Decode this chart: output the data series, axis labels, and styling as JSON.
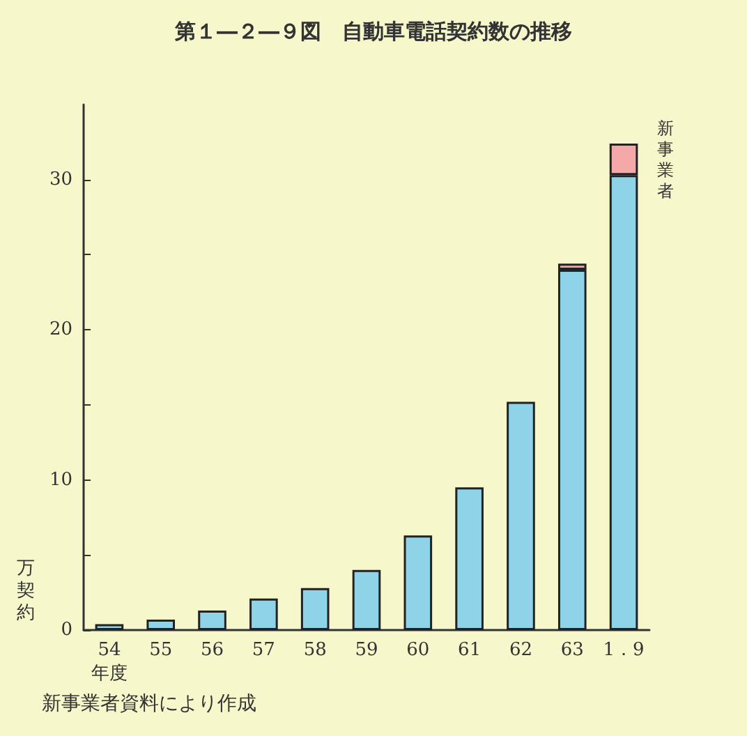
{
  "chart_data": {
    "type": "bar",
    "title": "第１―２―９図　自動車電話契約数の推移",
    "xlabel": "年度",
    "ylabel": "万契約",
    "annotations": [
      "新事業者資料により作成"
    ],
    "categories": [
      "54",
      "55",
      "56",
      "57",
      "58",
      "59",
      "60",
      "61",
      "62",
      "63",
      "1．9"
    ],
    "stacked": true,
    "series": [
      {
        "color": "#8fd3e8",
        "values": [
          0.4,
          0.7,
          1.3,
          2.1,
          2.8,
          4.0,
          6.3,
          9.5,
          15.2,
          24.0,
          30.3
        ]
      },
      {
        "name": "新事業者",
        "color": "#f4a9a8",
        "values": [
          null,
          null,
          null,
          null,
          null,
          null,
          null,
          null,
          null,
          0.4,
          2.1
        ]
      }
    ],
    "ylim": [
      0,
      35
    ],
    "yticks": [
      0,
      {
        "value": 5,
        "label": null
      },
      10,
      {
        "value": 15,
        "label": null
      },
      20,
      {
        "value": 25,
        "label": null
      },
      30
    ],
    "grid": false,
    "legend": false
  }
}
